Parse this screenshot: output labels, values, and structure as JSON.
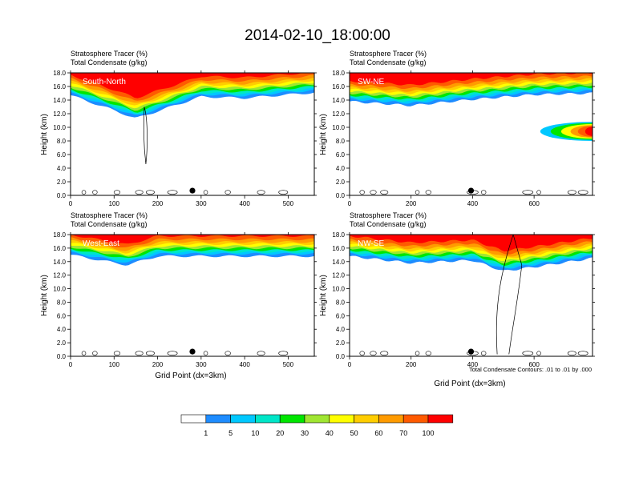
{
  "title": "2014-02-10_18:00:00",
  "panels": [
    {
      "header_line1": "Stratosphere Tracer   (%)",
      "header_line2": "Total Condensate   (g/kg)",
      "label": "South-North",
      "ylabel": "Height (km)",
      "yticks": [
        "0.0",
        "2.0",
        "4.0",
        "6.0",
        "8.0",
        "10.0",
        "12.0",
        "14.0",
        "16.0",
        "18.0"
      ],
      "xticks": [
        {
          "v": 0,
          "t": "0"
        },
        {
          "v": 100,
          "t": "100"
        },
        {
          "v": 200,
          "t": "200"
        },
        {
          "v": 300,
          "t": "300"
        },
        {
          "v": 400,
          "t": "400"
        },
        {
          "v": 500,
          "t": "500"
        }
      ]
    },
    {
      "header_line1": "Stratosphere Tracer   (%)",
      "header_line2": "Total Condensate   (g/kg)",
      "label": "SW-NE",
      "ylabel": "Height (km)",
      "yticks": [
        "0.0",
        "2.0",
        "4.0",
        "6.0",
        "8.0",
        "10.0",
        "12.0",
        "14.0",
        "16.0",
        "18.0"
      ],
      "xticks": [
        {
          "v": 0,
          "t": "0"
        },
        {
          "v": 200,
          "t": "200"
        },
        {
          "v": 400,
          "t": "400"
        },
        {
          "v": 600,
          "t": "600"
        }
      ]
    },
    {
      "header_line1": "Stratosphere Tracer   (%)",
      "header_line2": "Total Condensate   (g/kg)",
      "label": "West-East",
      "ylabel": "Height (km)",
      "xlabel": "Grid Point (dx=3km)",
      "yticks": [
        "0.0",
        "2.0",
        "4.0",
        "6.0",
        "8.0",
        "10.0",
        "12.0",
        "14.0",
        "16.0",
        "18.0"
      ],
      "xticks": [
        {
          "v": 0,
          "t": "0"
        },
        {
          "v": 100,
          "t": "100"
        },
        {
          "v": 200,
          "t": "200"
        },
        {
          "v": 300,
          "t": "300"
        },
        {
          "v": 400,
          "t": "400"
        },
        {
          "v": 500,
          "t": "500"
        }
      ]
    },
    {
      "header_line1": "Stratosphere Tracer   (%)",
      "header_line2": "Total Condensate   (g/kg)",
      "label": "NW-SE",
      "ylabel": "Height (km)",
      "xlabel": "Grid Point (dx=3km)",
      "footnote": "Total Condensate Contours: .01 to .01 by .000",
      "yticks": [
        "0.0",
        "2.0",
        "4.0",
        "6.0",
        "8.0",
        "10.0",
        "12.0",
        "14.0",
        "16.0",
        "18.0"
      ],
      "xticks": [
        {
          "v": 0,
          "t": "0"
        },
        {
          "v": 200,
          "t": "200"
        },
        {
          "v": 400,
          "t": "400"
        },
        {
          "v": 600,
          "t": "600"
        }
      ]
    }
  ],
  "colorbar": {
    "labels": [
      "1",
      "5",
      "10",
      "20",
      "30",
      "40",
      "50",
      "60",
      "70",
      "100"
    ],
    "colors": [
      "#ffffff",
      "#1e8cff",
      "#00c8ff",
      "#00e6c8",
      "#00e600",
      "#a0e632",
      "#ffff00",
      "#ffcd00",
      "#ff9b00",
      "#ff5a00",
      "#ff0000"
    ]
  },
  "chart_data": [
    {
      "type": "heatmap",
      "label": "South-North",
      "ylabel": "Height (km)",
      "ylim": [
        0,
        18
      ],
      "xlim": [
        0,
        560
      ],
      "contour_field": "Stratosphere Tracer (%)",
      "line_contour_field": "Total Condensate (g/kg)",
      "tropopause_base_km_approx": [
        {
          "x": 0,
          "z": 14.7
        },
        {
          "x": 100,
          "z": 12.5
        },
        {
          "x": 150,
          "z": 11.3
        },
        {
          "x": 300,
          "z": 14.5
        },
        {
          "x": 400,
          "z": 14.3
        },
        {
          "x": 560,
          "z": 15.1
        }
      ],
      "condensate_contour_x_km": [
        {
          "x": 173,
          "z_top": 13.0,
          "z_bottom": 4.6
        }
      ],
      "marker_x": 280
    },
    {
      "type": "heatmap",
      "label": "SW-NE",
      "ylabel": "Height (km)",
      "ylim": [
        0,
        18
      ],
      "xlim": [
        0,
        790
      ],
      "tropopause_base_km_approx": [
        {
          "x": 0,
          "z": 13.8
        },
        {
          "x": 200,
          "z": 13.2
        },
        {
          "x": 400,
          "z": 14.1
        },
        {
          "x": 600,
          "z": 14.8
        },
        {
          "x": 790,
          "z": 15.0
        }
      ],
      "intrusion": {
        "x_start": 620,
        "x_end": 790,
        "z_low": 8.0,
        "z_high": 10.8
      },
      "marker_x": 395
    },
    {
      "type": "heatmap",
      "label": "West-East",
      "ylabel": "Height (km)",
      "xlabel": "Grid Point (dx=3km)",
      "ylim": [
        0,
        18
      ],
      "xlim": [
        0,
        560
      ],
      "tropopause_base_km_approx": [
        {
          "x": 0,
          "z": 15.0
        },
        {
          "x": 130,
          "z": 13.5
        },
        {
          "x": 200,
          "z": 14.8
        },
        {
          "x": 560,
          "z": 14.8
        }
      ],
      "marker_x": 280
    },
    {
      "type": "heatmap",
      "label": "NW-SE",
      "ylabel": "Height (km)",
      "xlabel": "Grid Point (dx=3km)",
      "ylim": [
        0,
        18
      ],
      "xlim": [
        0,
        790
      ],
      "tropopause_base_km_approx": [
        {
          "x": 0,
          "z": 14.8
        },
        {
          "x": 200,
          "z": 13.8
        },
        {
          "x": 400,
          "z": 14.2
        },
        {
          "x": 500,
          "z": 12.6
        },
        {
          "x": 600,
          "z": 13.2
        },
        {
          "x": 790,
          "z": 14.5
        }
      ],
      "condensate_contours": "deep convective column near x≈480–560 from 0 to 18 km",
      "marker_x": 395
    }
  ]
}
